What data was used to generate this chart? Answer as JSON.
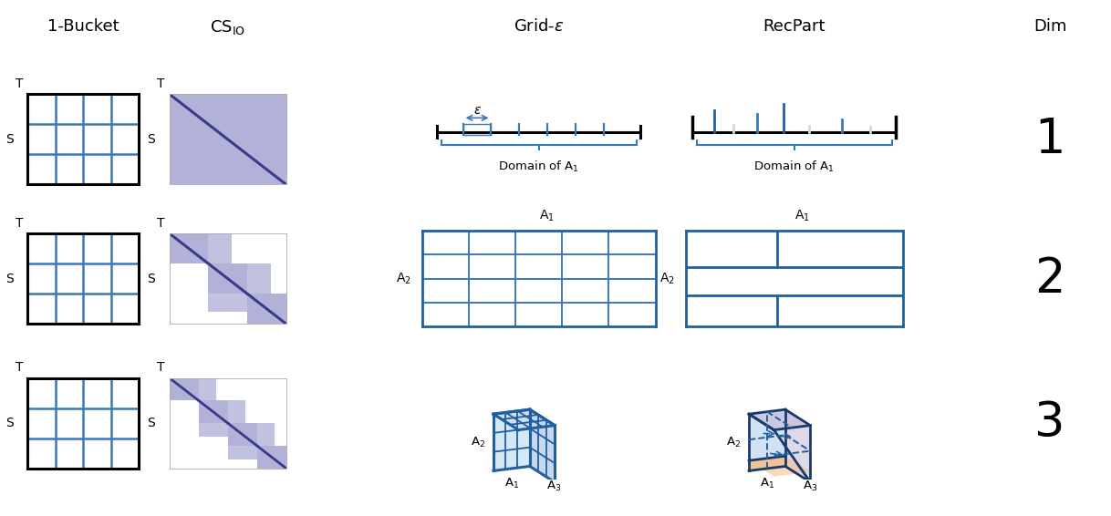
{
  "title_1bucket": "1-Bucket",
  "title_csio": "CS_{IO}",
  "title_grideps": "Grid-ε",
  "title_recpart": "RecPart",
  "title_dim": "Dim",
  "col_header_fontsize": 13,
  "dim_labels": [
    "1",
    "2",
    "3"
  ],
  "dim_fontsize": 38,
  "blue": "#3A7AB8",
  "blue_dark": "#2060A0",
  "blue_edge": "#2D6FAF",
  "light_blue": "#C5DCEE",
  "light_purple": "#9999CC",
  "purple_med": "#8080BB",
  "orange": "#F4B183",
  "pink": "#E8C8D8",
  "white": "#FFFFFF"
}
